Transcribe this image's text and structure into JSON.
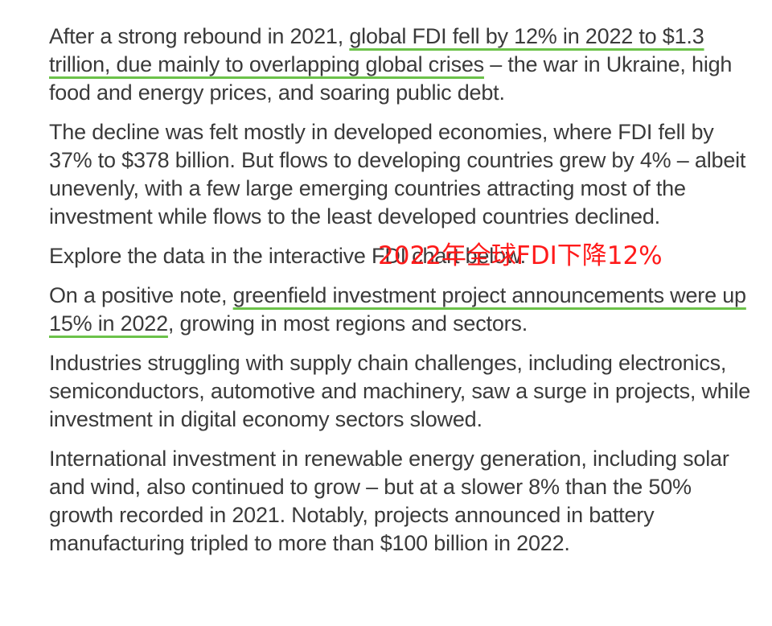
{
  "article": {
    "p1": {
      "before": "After a strong rebound in 2021, ",
      "highlight": "global FDI fell by 12% in 2022 to $1.3 trillion, due mainly to overlapping global crises",
      "after": " – the war in Ukraine, high food and energy prices, and soaring public debt."
    },
    "p2": "The decline was felt mostly in developed economies, where FDI fell by 37% to $378 billion. But flows to developing countries grew by 4% – albeit unevenly, with a few large emerging countries attracting most of the investment while flows to the least developed countries declined.",
    "p3": "Explore the data in the interactive FDI chart below.",
    "p4": {
      "before": "On a positive note, ",
      "highlight": "greenfield investment project announcements were up 15% in 2022",
      "after": ", growing in most regions and sectors."
    },
    "p5": "Industries struggling with supply chain challenges, including electronics, semiconductors, automotive and machinery, saw a surge in projects, while investment in digital economy sectors slowed.",
    "p6": "International investment in renewable energy generation, including solar and wind, also continued to grow – but at a slower 8% than the 50% growth recorded in 2021. Notably, projects announced in battery manufacturing tripled to more than $100 billion in 2022."
  },
  "annotation": {
    "text": "2022年全球FDI下降12%",
    "color": "#ff1a1a"
  },
  "colors": {
    "text": "#3a3a3a",
    "highlight_underline": "#6cc24a"
  }
}
